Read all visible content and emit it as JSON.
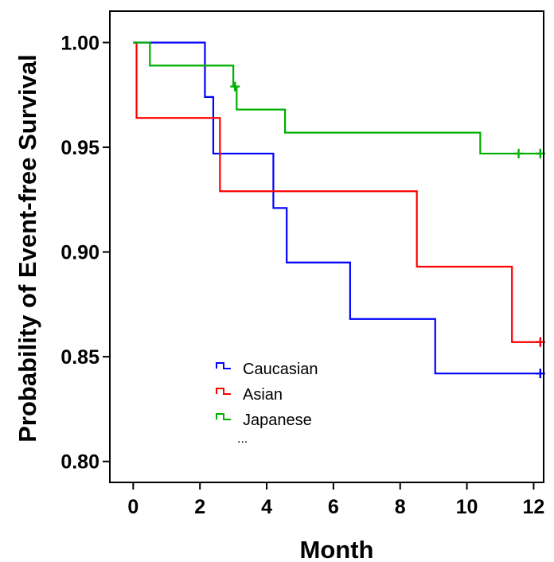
{
  "chart_data": {
    "type": "line",
    "step": true,
    "title": "",
    "xlabel": "Month",
    "ylabel": "Probability of Event-free Survival",
    "xlim": [
      -0.7,
      12.3
    ],
    "ylim": [
      0.79,
      1.015
    ],
    "xticks": [
      0,
      2,
      4,
      6,
      8,
      10,
      12
    ],
    "xtick_labels": [
      "0",
      "2",
      "4",
      "6",
      "8",
      "10",
      "12"
    ],
    "yticks": [
      0.8,
      0.85,
      0.9,
      0.95,
      1.0
    ],
    "ytick_labels": [
      "0.80",
      "0.85",
      "0.90",
      "0.95",
      "1.00"
    ],
    "grid": false,
    "legend_position": "bottom-center",
    "legend_more": "...",
    "series": [
      {
        "name": "Caucasian",
        "color": "#0000ff",
        "x": [
          0,
          2.15,
          2.4,
          4.2,
          4.6,
          6.5,
          9.05,
          12.2
        ],
        "y": [
          1.0,
          0.974,
          0.947,
          0.921,
          0.895,
          0.868,
          0.842,
          0.842
        ],
        "censored": [
          {
            "x": 12.2,
            "y": 0.842
          }
        ]
      },
      {
        "name": "Asian",
        "color": "#ff0000",
        "x": [
          0,
          0.1,
          2.6,
          8.5,
          11.35,
          12.2
        ],
        "y": [
          1.0,
          0.964,
          0.929,
          0.893,
          0.857,
          0.857
        ],
        "censored": [
          {
            "x": 12.2,
            "y": 0.857
          }
        ]
      },
      {
        "name": "Japanese",
        "color": "#00b000",
        "x": [
          0,
          0.5,
          3.0,
          3.1,
          4.55,
          10.4,
          12.2
        ],
        "y": [
          1.0,
          0.989,
          0.979,
          0.968,
          0.957,
          0.947,
          0.947
        ],
        "censored": [
          {
            "x": 3.05,
            "y": 0.979
          },
          {
            "x": 11.55,
            "y": 0.947
          },
          {
            "x": 12.2,
            "y": 0.947
          }
        ]
      }
    ]
  }
}
